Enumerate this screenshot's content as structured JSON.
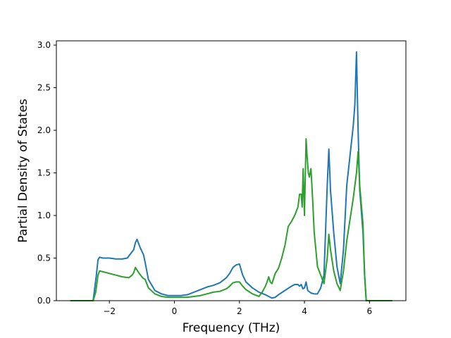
{
  "chart_data": {
    "type": "line",
    "title": "",
    "xlabel": "Frequency (THz)",
    "ylabel": "Partial Density of States",
    "xlim": [
      -3.63,
      7.12
    ],
    "ylim": [
      0,
      3.05
    ],
    "xticks": [
      -2,
      0,
      2,
      4,
      6
    ],
    "yticks": [
      0.0,
      0.5,
      1.0,
      1.5,
      2.0,
      2.5,
      3.0
    ],
    "xtick_labels": [
      "−2",
      "0",
      "2",
      "4",
      "6"
    ],
    "ytick_labels": [
      "0.0",
      "0.5",
      "1.0",
      "1.5",
      "2.0",
      "2.5",
      "3.0"
    ],
    "grid": false,
    "legend": "none",
    "series": [
      {
        "color": "#1f77b4",
        "x": [
          -3.2,
          -2.5,
          -2.4,
          -2.35,
          -2.3,
          -2.2,
          -2.0,
          -1.8,
          -1.6,
          -1.45,
          -1.35,
          -1.25,
          -1.2,
          -1.15,
          -1.05,
          -0.95,
          -0.9,
          -0.8,
          -0.6,
          -0.4,
          -0.2,
          0.0,
          0.2,
          0.4,
          0.6,
          0.8,
          1.0,
          1.2,
          1.4,
          1.5,
          1.6,
          1.7,
          1.8,
          1.9,
          2.0,
          2.1,
          2.2,
          2.4,
          2.6,
          2.8,
          2.9,
          3.0,
          3.1,
          3.2,
          3.4,
          3.6,
          3.7,
          3.8,
          3.85,
          3.9,
          3.95,
          4.0,
          4.05,
          4.1,
          4.2,
          4.3,
          4.4,
          4.5,
          4.6,
          4.7,
          4.75,
          4.8,
          4.9,
          5.0,
          5.1,
          5.2,
          5.3,
          5.4,
          5.5,
          5.55,
          5.6,
          5.65,
          5.7,
          5.8,
          5.85,
          5.9,
          6.0,
          6.7
        ],
        "y": [
          0.0,
          0.0,
          0.3,
          0.48,
          0.51,
          0.5,
          0.5,
          0.49,
          0.49,
          0.5,
          0.55,
          0.6,
          0.68,
          0.72,
          0.62,
          0.54,
          0.45,
          0.25,
          0.12,
          0.08,
          0.06,
          0.06,
          0.06,
          0.07,
          0.1,
          0.13,
          0.16,
          0.18,
          0.21,
          0.24,
          0.27,
          0.32,
          0.39,
          0.42,
          0.43,
          0.3,
          0.22,
          0.15,
          0.1,
          0.07,
          0.05,
          0.03,
          0.04,
          0.07,
          0.12,
          0.17,
          0.19,
          0.19,
          0.17,
          0.19,
          0.14,
          0.15,
          0.22,
          0.12,
          0.09,
          0.08,
          0.08,
          0.15,
          0.3,
          1.35,
          1.78,
          1.3,
          0.8,
          0.4,
          0.2,
          0.6,
          1.35,
          1.7,
          2.05,
          2.3,
          2.92,
          2.0,
          1.3,
          0.8,
          0.3,
          0.0,
          0.0,
          0.0
        ]
      },
      {
        "color": "#2ca02c",
        "x": [
          -3.2,
          -2.5,
          -2.42,
          -2.35,
          -2.3,
          -2.2,
          -2.0,
          -1.8,
          -1.6,
          -1.4,
          -1.3,
          -1.25,
          -1.2,
          -1.1,
          -1.0,
          -0.95,
          -0.9,
          -0.8,
          -0.6,
          -0.4,
          -0.2,
          0.0,
          0.2,
          0.4,
          0.6,
          0.8,
          1.0,
          1.2,
          1.4,
          1.6,
          1.7,
          1.8,
          1.9,
          2.0,
          2.1,
          2.2,
          2.4,
          2.6,
          2.7,
          2.8,
          2.85,
          2.9,
          2.95,
          3.0,
          3.1,
          3.2,
          3.3,
          3.4,
          3.5,
          3.6,
          3.7,
          3.8,
          3.85,
          3.9,
          3.93,
          3.96,
          4.0,
          4.05,
          4.08,
          4.12,
          4.15,
          4.2,
          4.25,
          4.3,
          4.4,
          4.5,
          4.6,
          4.7,
          4.75,
          4.8,
          4.9,
          5.0,
          5.1,
          5.2,
          5.3,
          5.4,
          5.5,
          5.6,
          5.65,
          5.7,
          5.8,
          5.85,
          5.9,
          6.0,
          6.7
        ],
        "y": [
          0.0,
          0.0,
          0.1,
          0.3,
          0.35,
          0.34,
          0.32,
          0.3,
          0.28,
          0.27,
          0.3,
          0.33,
          0.39,
          0.33,
          0.28,
          0.26,
          0.25,
          0.15,
          0.08,
          0.05,
          0.04,
          0.04,
          0.04,
          0.04,
          0.05,
          0.06,
          0.08,
          0.1,
          0.11,
          0.14,
          0.17,
          0.21,
          0.22,
          0.22,
          0.17,
          0.13,
          0.08,
          0.05,
          0.1,
          0.17,
          0.22,
          0.28,
          0.22,
          0.2,
          0.32,
          0.38,
          0.5,
          0.65,
          0.87,
          0.93,
          1.0,
          1.1,
          1.25,
          1.25,
          1.1,
          1.55,
          1.0,
          1.9,
          1.7,
          1.5,
          1.45,
          1.55,
          1.2,
          0.8,
          0.4,
          0.3,
          0.2,
          0.5,
          0.78,
          0.6,
          0.35,
          0.2,
          0.12,
          0.35,
          0.7,
          0.95,
          1.2,
          1.5,
          1.75,
          1.35,
          0.9,
          0.3,
          0.0,
          0.0,
          0.0
        ]
      }
    ]
  }
}
